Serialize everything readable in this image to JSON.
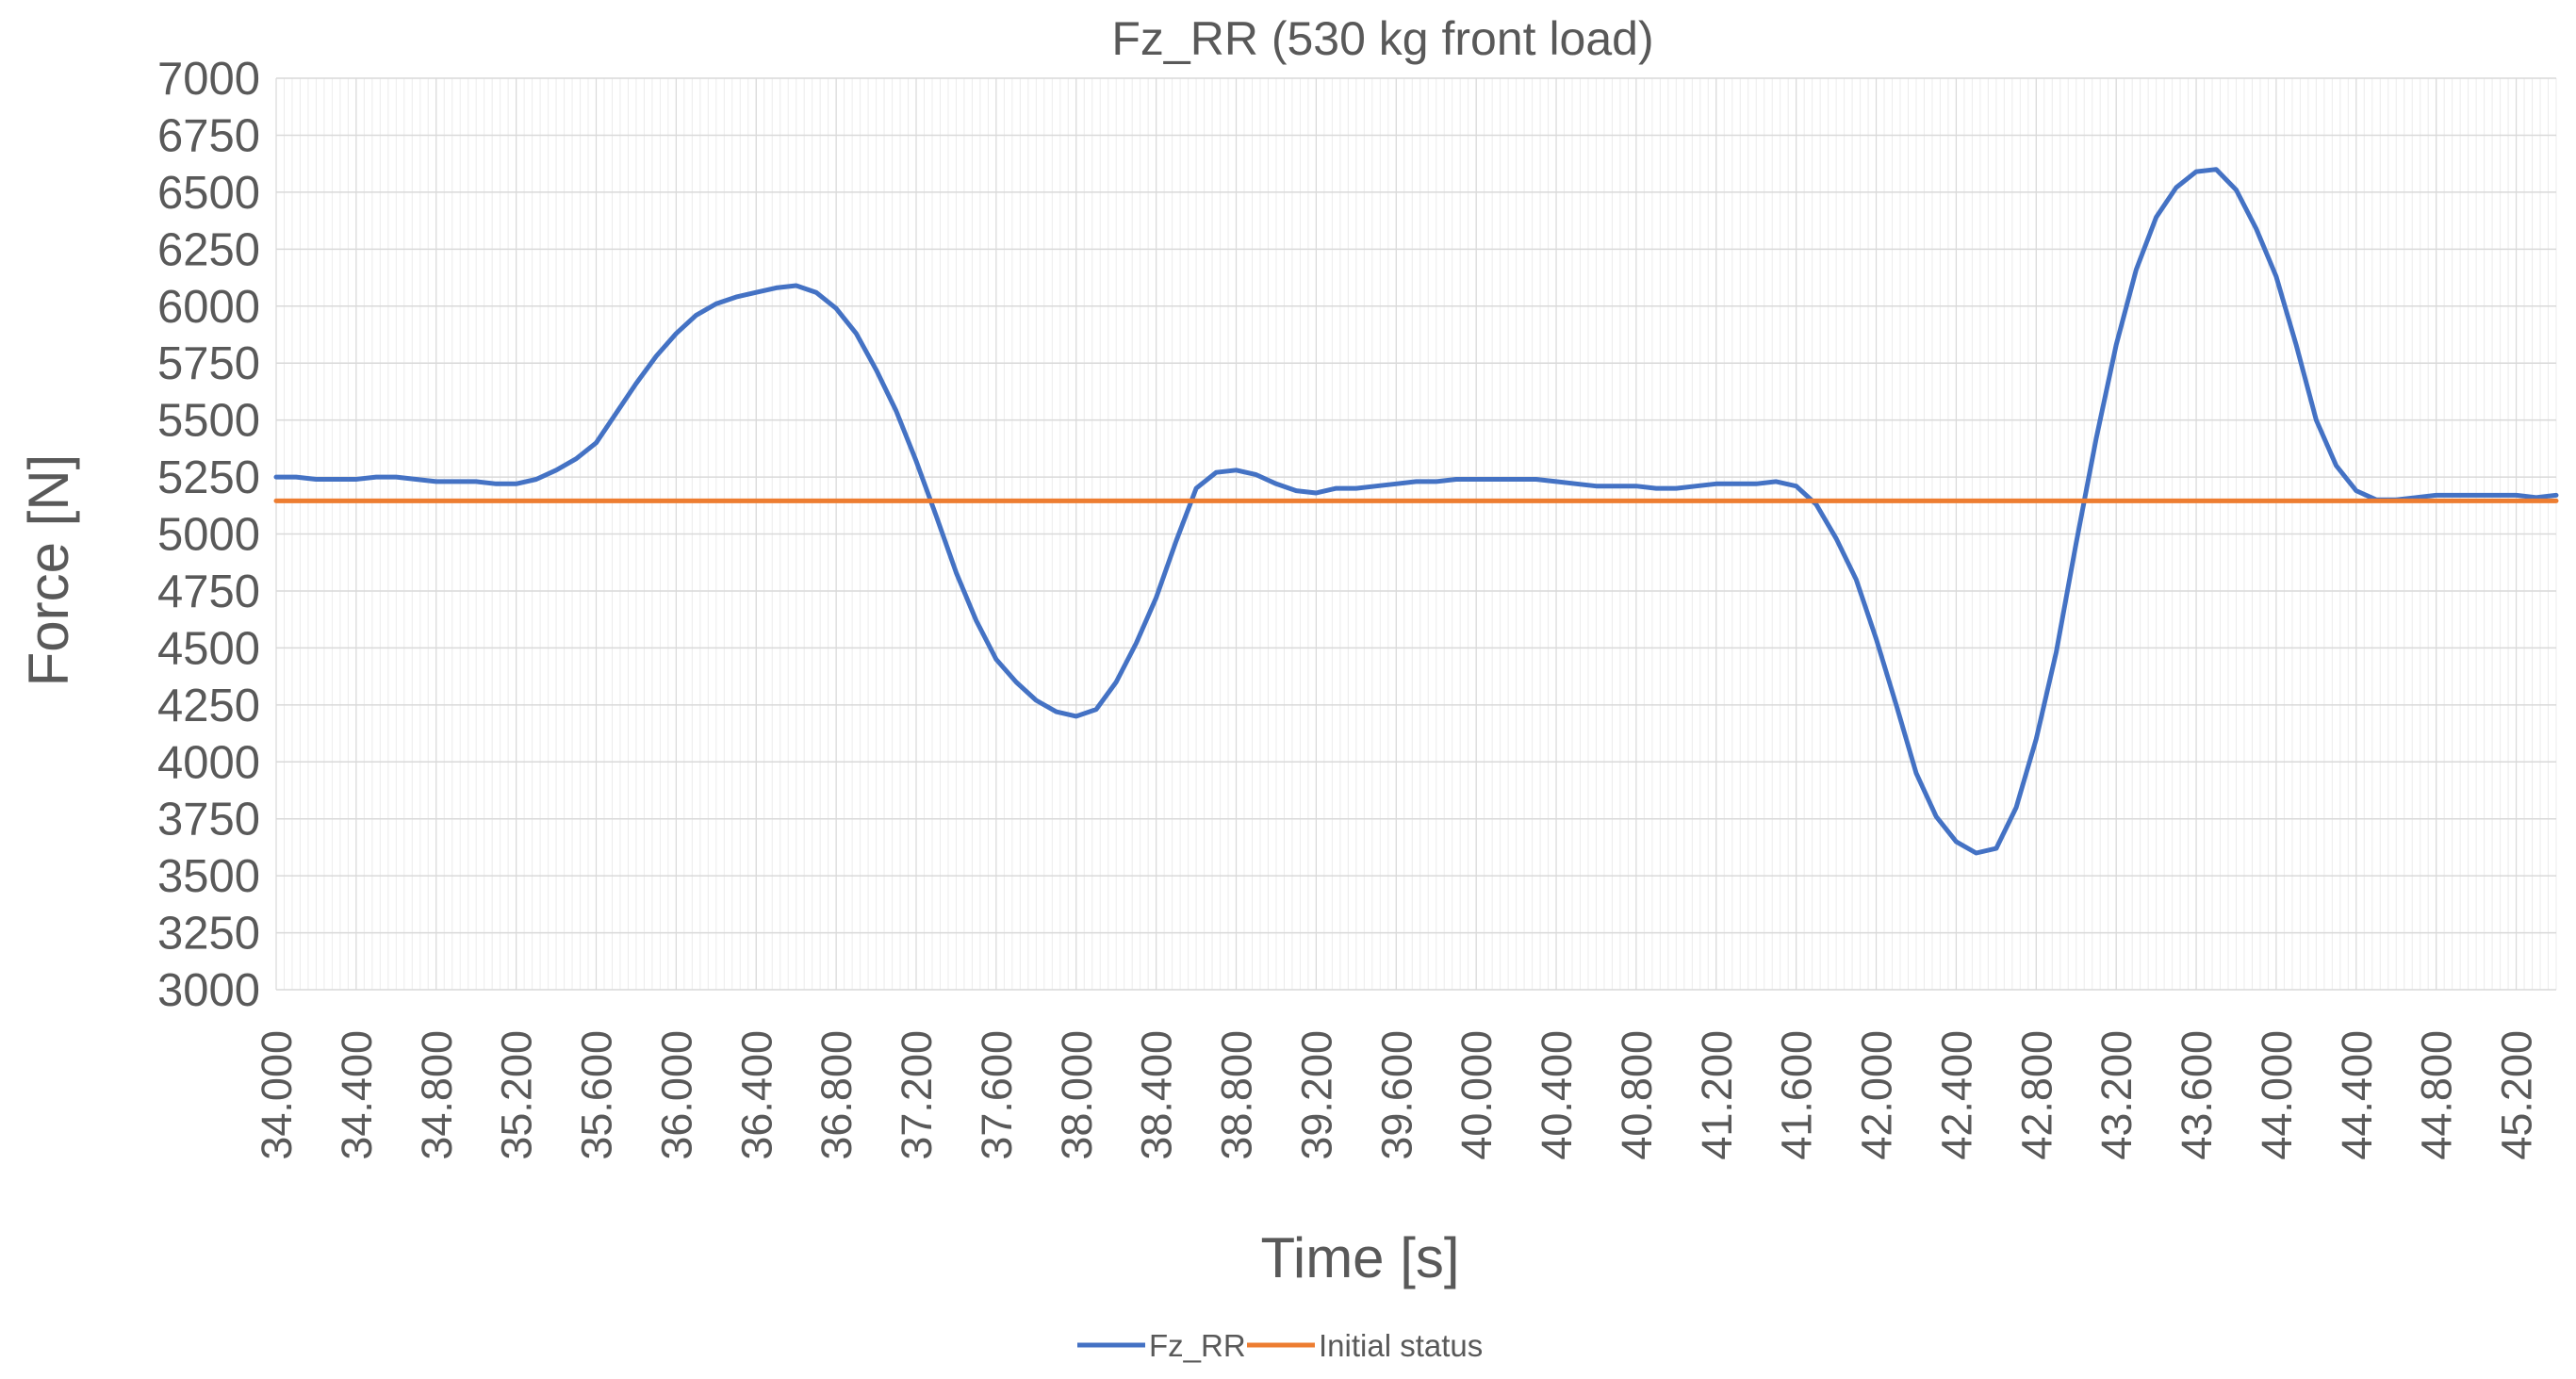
{
  "chart_data": {
    "type": "line",
    "title": "Fz_RR (530 kg front load)",
    "xlabel": "Time [s]",
    "ylabel": "Force [N]",
    "ylim": [
      3000,
      7000
    ],
    "y_ticks": [
      "3000",
      "3250",
      "3500",
      "3750",
      "4000",
      "4250",
      "4500",
      "4750",
      "5000",
      "5250",
      "5500",
      "5750",
      "6000",
      "6250",
      "6500",
      "6750",
      "7000"
    ],
    "x_ticks": [
      "34.000",
      "34.400",
      "34.800",
      "35.200",
      "35.600",
      "36.000",
      "36.400",
      "36.800",
      "37.200",
      "37.600",
      "38.000",
      "38.400",
      "38.800",
      "39.200",
      "39.600",
      "40.000",
      "40.400",
      "40.800",
      "41.200",
      "41.600",
      "42.000",
      "42.400",
      "42.800",
      "43.200",
      "43.600",
      "44.000",
      "44.400",
      "44.800",
      "45.200"
    ],
    "xlim": [
      34.0,
      45.4
    ],
    "grid": true,
    "legend_position": "bottom",
    "series": [
      {
        "name": "Fz_RR",
        "color": "#4472C4",
        "x": [
          34.0,
          34.1,
          34.2,
          34.3,
          34.4,
          34.5,
          34.6,
          34.7,
          34.8,
          34.9,
          35.0,
          35.1,
          35.2,
          35.3,
          35.4,
          35.5,
          35.6,
          35.7,
          35.8,
          35.9,
          36.0,
          36.1,
          36.2,
          36.3,
          36.4,
          36.5,
          36.6,
          36.7,
          36.8,
          36.9,
          37.0,
          37.1,
          37.2,
          37.3,
          37.4,
          37.5,
          37.6,
          37.7,
          37.8,
          37.9,
          38.0,
          38.1,
          38.2,
          38.3,
          38.4,
          38.5,
          38.6,
          38.7,
          38.8,
          38.9,
          39.0,
          39.1,
          39.2,
          39.3,
          39.4,
          39.5,
          39.6,
          39.7,
          39.8,
          39.9,
          40.0,
          40.1,
          40.2,
          40.3,
          40.4,
          40.5,
          40.6,
          40.7,
          40.8,
          40.9,
          41.0,
          41.1,
          41.2,
          41.3,
          41.4,
          41.5,
          41.6,
          41.7,
          41.8,
          41.9,
          42.0,
          42.1,
          42.2,
          42.3,
          42.4,
          42.5,
          42.6,
          42.7,
          42.8,
          42.9,
          43.0,
          43.1,
          43.2,
          43.3,
          43.4,
          43.5,
          43.6,
          43.7,
          43.8,
          43.9,
          44.0,
          44.1,
          44.2,
          44.3,
          44.4,
          44.5,
          44.6,
          44.7,
          44.8,
          44.9,
          45.0,
          45.1,
          45.2,
          45.3,
          45.4
        ],
        "y": [
          5250,
          5250,
          5240,
          5240,
          5240,
          5250,
          5250,
          5240,
          5230,
          5230,
          5230,
          5220,
          5220,
          5240,
          5280,
          5330,
          5400,
          5530,
          5660,
          5780,
          5880,
          5960,
          6010,
          6040,
          6060,
          6080,
          6090,
          6060,
          5990,
          5880,
          5720,
          5540,
          5320,
          5080,
          4830,
          4620,
          4450,
          4350,
          4270,
          4220,
          4200,
          4230,
          4350,
          4520,
          4720,
          4970,
          5200,
          5270,
          5280,
          5260,
          5220,
          5190,
          5180,
          5200,
          5200,
          5210,
          5220,
          5230,
          5230,
          5240,
          5240,
          5240,
          5240,
          5240,
          5230,
          5220,
          5210,
          5210,
          5210,
          5200,
          5200,
          5210,
          5220,
          5220,
          5220,
          5230,
          5210,
          5130,
          4980,
          4800,
          4540,
          4250,
          3950,
          3760,
          3650,
          3600,
          3620,
          3800,
          4100,
          4480,
          4960,
          5420,
          5830,
          6160,
          6390,
          6520,
          6590,
          6600,
          6510,
          6340,
          6130,
          5830,
          5500,
          5300,
          5190,
          5150,
          5150,
          5160,
          5170,
          5170,
          5170,
          5170,
          5170,
          5160,
          5170
        ]
      },
      {
        "name": "Initial status",
        "color": "#ED7D31",
        "x": [
          34.0,
          45.4
        ],
        "y": [
          5145,
          5145
        ]
      }
    ]
  }
}
